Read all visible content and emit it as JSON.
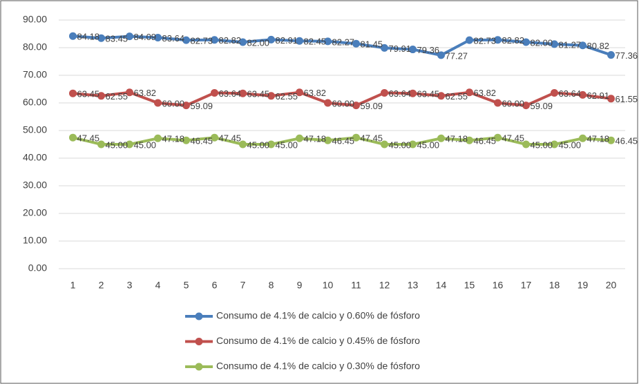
{
  "chart_data": {
    "type": "line",
    "categories": [
      "1",
      "2",
      "3",
      "4",
      "5",
      "6",
      "7",
      "8",
      "9",
      "10",
      "11",
      "12",
      "13",
      "14",
      "15",
      "16",
      "17",
      "18",
      "19",
      "20"
    ],
    "ylim": [
      0,
      90
    ],
    "yticks": [
      {
        "value": 0,
        "label": "0.00"
      },
      {
        "value": 10,
        "label": "10.00"
      },
      {
        "value": 20,
        "label": "20.00"
      },
      {
        "value": 30,
        "label": "30.00"
      },
      {
        "value": 40,
        "label": "40.00"
      },
      {
        "value": 50,
        "label": "50.00"
      },
      {
        "value": 60,
        "label": "60.00"
      },
      {
        "value": 70,
        "label": "70.00"
      },
      {
        "value": 80,
        "label": "80.00"
      },
      {
        "value": 90,
        "label": "90.00"
      }
    ],
    "grid": true,
    "legend": "bottom",
    "series": [
      {
        "name": "Consumo de 4.1% de calcio y 0.60% de fósforo",
        "color": "#4a7ebb",
        "values": [
          84.18,
          83.45,
          84.09,
          83.64,
          82.73,
          82.82,
          82.0,
          82.91,
          82.45,
          82.27,
          81.45,
          79.91,
          79.36,
          77.27,
          82.73,
          82.82,
          82.0,
          81.27,
          80.82,
          77.36
        ],
        "value_labels": [
          "84.18",
          "83.45",
          "84.09",
          "83.64",
          "82.73",
          "82.82",
          "82.00",
          "82.91",
          "82.45",
          "82.27",
          "81.45",
          "79.91",
          "79.36",
          "77.27",
          "82.73",
          "82.82",
          "82.00",
          "81.27",
          "80.82",
          "77.36"
        ]
      },
      {
        "name": "Consumo de 4.1% de calcio y 0.45% de fósforo",
        "color": "#c0504d",
        "values": [
          63.45,
          62.55,
          63.82,
          60.0,
          59.09,
          63.64,
          63.45,
          62.55,
          63.82,
          60.0,
          59.09,
          63.64,
          63.45,
          62.55,
          63.82,
          60.0,
          59.09,
          63.64,
          62.91,
          61.55
        ],
        "value_labels": [
          "63.45",
          "62.55",
          "63.82",
          "60.00",
          "59.09",
          "63.64",
          "63.45",
          "62.55",
          "63.82",
          "60.00",
          "59.09",
          "63.64",
          "63.45",
          "62.55",
          "63.82",
          "60.00",
          "59.09",
          "63.64",
          "62.91",
          "61.55"
        ]
      },
      {
        "name": "Consumo de 4.1% de calcio y 0.30% de fósforo",
        "color": "#9bbb59",
        "values": [
          47.45,
          45.0,
          45.0,
          47.18,
          46.45,
          47.45,
          45.0,
          45.0,
          47.18,
          46.45,
          47.45,
          45.0,
          45.0,
          47.18,
          46.45,
          47.45,
          45.0,
          45.0,
          47.18,
          46.45
        ],
        "value_labels": [
          "47.45",
          "45.00",
          "45.00",
          "47.18",
          "46.45",
          "47.45",
          "45.00",
          "45.00",
          "47.18",
          "46.45",
          "47.45",
          "45.00",
          "45.00",
          "47.18",
          "46.45",
          "47.45",
          "45.00",
          "45.00",
          "47.18",
          "46.45"
        ]
      }
    ]
  }
}
